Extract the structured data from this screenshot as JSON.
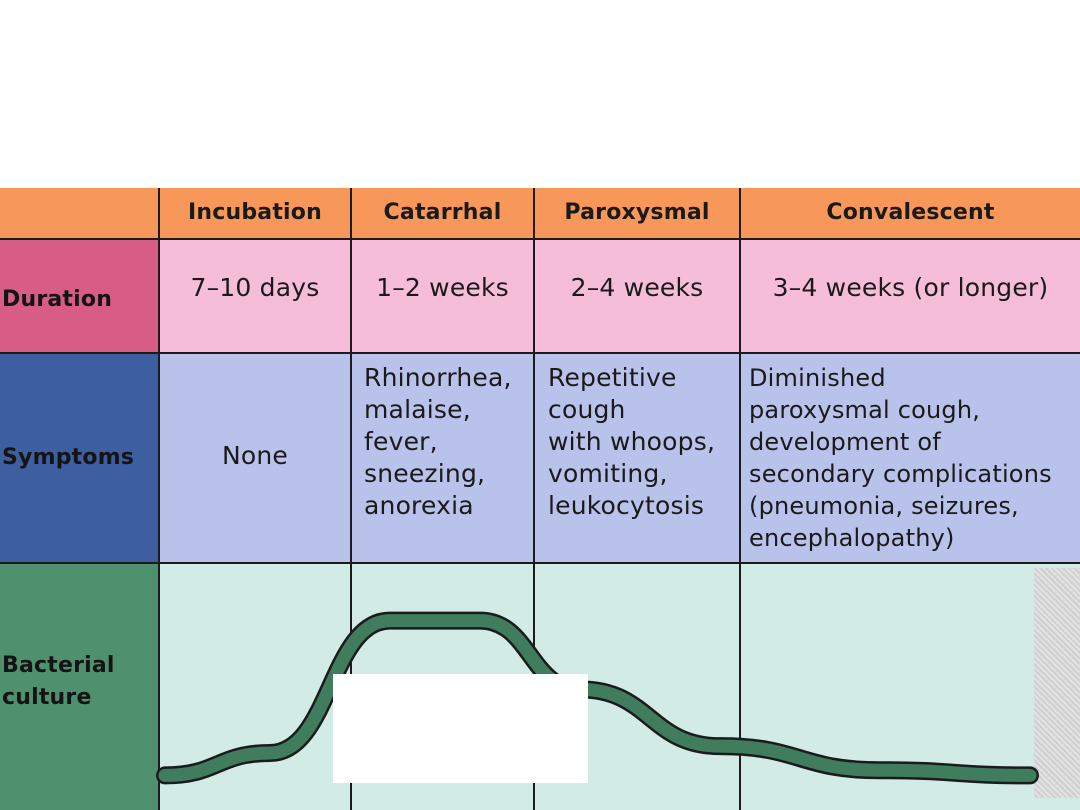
{
  "table": {
    "headers": [
      "",
      "Incubation",
      "Catarrhal",
      "Paroxysmal",
      "Convalescent"
    ],
    "rows": [
      {
        "label": "Duration",
        "cells": [
          "7–10 days",
          "1–2 weeks",
          "2–4 weeks",
          "3–4 weeks (or longer)"
        ]
      },
      {
        "label": "Symptoms",
        "cells": [
          "None",
          "Rhinorrhea,\nmalaise,\nfever,\nsneezing,\nanorexia",
          "Repetitive\ncough\nwith whoops,\nvomiting,\nleukocytosis",
          "Diminished\nparoxysmal cough,\ndevelopment of\nsecondary complications\n(pneumonia, seizures,\nencephalopathy)"
        ]
      },
      {
        "label": "Bacterial\nculture",
        "cells": [
          "",
          "",
          "",
          ""
        ]
      }
    ]
  },
  "colors": {
    "header": "#f8975a",
    "duration": "#f5bdd8",
    "duration_label": "#d85d86",
    "symptoms": "#b9c2ea",
    "symptoms_label": "#3d5fa2",
    "culture": "#d3ebe5",
    "culture_label": "#4f916f",
    "curve": "#3f7d5e"
  },
  "curve": {
    "description_level": "culture positivity rises in catarrhal stage, peaks, then declines through paroxysmal and convalescent stages",
    "levels": [
      0.05,
      0.18,
      0.95,
      0.95,
      0.55,
      0.22,
      0.08,
      0.05
    ]
  }
}
